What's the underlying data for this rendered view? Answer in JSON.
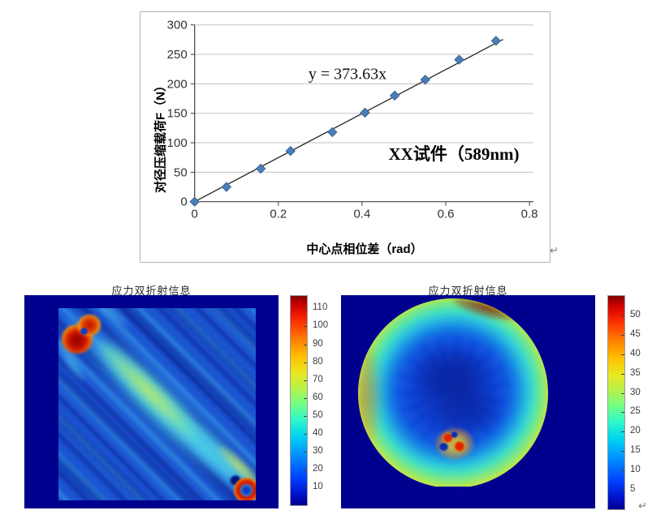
{
  "page": {
    "background": "#ffffff",
    "panel_background": "#00008f"
  },
  "marks": {
    "return_top": "↵",
    "return_bottom": "↵"
  },
  "chart_data": [
    {
      "id": "load_vs_phase_scatter",
      "type": "scatter",
      "equation_label": "y = 373.63x",
      "annotation": "XX试件（589nm)",
      "xlabel": "中心点相位差（rad）",
      "ylabel": "对径压缩载荷F（N）",
      "xlim": [
        0,
        0.8
      ],
      "ylim": [
        0,
        300
      ],
      "x_ticks": [
        "0",
        "0.2",
        "0.4",
        "0.6",
        "0.8"
      ],
      "y_ticks": [
        "0",
        "50",
        "100",
        "150",
        "200",
        "250",
        "300"
      ],
      "x": [
        0,
        0.076,
        0.158,
        0.229,
        0.329,
        0.407,
        0.478,
        0.551,
        0.632,
        0.72
      ],
      "y": [
        0,
        25,
        56,
        86,
        118,
        151,
        180,
        207,
        241,
        273
      ],
      "trend": {
        "slope": 373.63,
        "x_start": 0,
        "x_end": 0.737
      },
      "marker_color": "#4a7ebb",
      "marker_edge_color": "#39648c",
      "trend_color": "#262626",
      "grid": true,
      "grid_color": "#c3c3c3"
    },
    {
      "id": "birefringence_square_sample",
      "type": "heatmap",
      "title": "应力双折射信息",
      "colormap": "jet",
      "colorbar": {
        "ticks": [
          110,
          100,
          90,
          80,
          70,
          60,
          50,
          40,
          30,
          20,
          10
        ],
        "min": 0,
        "max": 117
      },
      "features": "square sample on navy background; diagonal blue/cyan fringes; yellow-green central band; red stress concentration top-left; red ring defect bottom-right"
    },
    {
      "id": "birefringence_disk_sample",
      "type": "heatmap",
      "title": "应力双折射信息",
      "colormap": "jet",
      "colorbar": {
        "ticks": [
          50,
          45,
          40,
          35,
          30,
          25,
          20,
          15,
          10,
          5
        ],
        "min": 0,
        "max": 55
      },
      "features": "circular disk on navy background; red high-stress rim; yellow-green ring; dark blue low-stress center; small red defect cluster below-left of center; flattened bottom edge"
    }
  ]
}
